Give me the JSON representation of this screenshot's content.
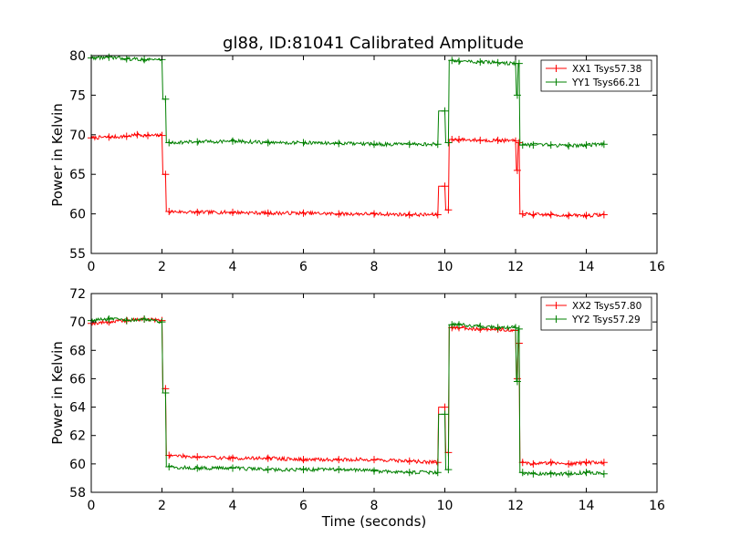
{
  "figure": {
    "title": "gl88, ID:81041 Calibrated Amplitude"
  },
  "chart_data": [
    {
      "type": "line",
      "title": "gl88, ID:81041 Calibrated Amplitude",
      "xlabel": "",
      "ylabel": "Power in Kelvin",
      "xlim": [
        0,
        16
      ],
      "ylim": [
        55,
        80
      ],
      "xticks": [
        "0",
        "2",
        "4",
        "6",
        "8",
        "10",
        "12",
        "14",
        "16"
      ],
      "yticks": [
        "55",
        "60",
        "65",
        "70",
        "75",
        "80"
      ],
      "grid": false,
      "legend_position": "top-right",
      "series": [
        {
          "name": "XX1 Tsys57.38",
          "color": "#ff0000",
          "marker": "plus",
          "x": [
            0,
            0.5,
            1.0,
            1.3,
            1.6,
            2.0,
            2.1,
            2.2,
            3.0,
            4.0,
            5.0,
            6.0,
            7.0,
            8.0,
            9.0,
            9.8,
            10.0,
            10.1,
            10.2,
            10.4,
            11.0,
            11.5,
            12.0,
            12.05,
            12.1,
            12.2,
            12.5,
            13.0,
            13.5,
            14.0,
            14.5
          ],
          "y": [
            69.6,
            69.7,
            69.8,
            70.0,
            69.9,
            69.9,
            65.0,
            60.3,
            60.2,
            60.2,
            60.1,
            60.1,
            60.0,
            60.0,
            59.9,
            59.9,
            63.5,
            60.5,
            69.4,
            69.4,
            69.3,
            69.3,
            69.2,
            65.5,
            69.0,
            60.0,
            59.9,
            59.9,
            59.8,
            59.8,
            59.9
          ]
        },
        {
          "name": "YY1 Tsys66.21",
          "color": "#008000",
          "marker": "plus",
          "x": [
            0,
            0.5,
            1.0,
            1.5,
            2.0,
            2.1,
            2.2,
            3.0,
            4.0,
            5.0,
            6.0,
            7.0,
            8.0,
            9.0,
            9.8,
            10.0,
            10.1,
            10.2,
            10.4,
            11.0,
            11.5,
            12.0,
            12.05,
            12.1,
            12.2,
            12.5,
            13.0,
            13.5,
            14.0,
            14.5
          ],
          "y": [
            79.7,
            79.8,
            79.6,
            79.5,
            79.5,
            74.5,
            69.0,
            69.1,
            69.2,
            69.0,
            69.0,
            68.9,
            68.8,
            68.8,
            68.8,
            73.0,
            69.0,
            79.4,
            79.3,
            79.2,
            79.1,
            79.0,
            75.0,
            79.0,
            68.7,
            68.7,
            68.7,
            68.6,
            68.7,
            68.8
          ]
        }
      ]
    },
    {
      "type": "line",
      "title": "",
      "xlabel": "Time (seconds)",
      "ylabel": "Power in Kelvin",
      "xlim": [
        0,
        16
      ],
      "ylim": [
        58,
        72
      ],
      "xticks": [
        "0",
        "2",
        "4",
        "6",
        "8",
        "10",
        "12",
        "14",
        "16"
      ],
      "yticks": [
        "58",
        "60",
        "62",
        "64",
        "66",
        "68",
        "70",
        "72"
      ],
      "grid": false,
      "legend_position": "top-right",
      "series": [
        {
          "name": "XX2 Tsys57.80",
          "color": "#ff0000",
          "marker": "plus",
          "x": [
            0,
            0.5,
            1.0,
            1.5,
            2.0,
            2.1,
            2.2,
            3.0,
            4.0,
            5.0,
            6.0,
            7.0,
            8.0,
            9.0,
            9.8,
            10.0,
            10.1,
            10.2,
            10.4,
            11.0,
            11.5,
            12.0,
            12.05,
            12.1,
            12.2,
            12.5,
            13.0,
            13.5,
            14.0,
            14.5
          ],
          "y": [
            69.9,
            70.0,
            70.1,
            70.2,
            70.1,
            65.3,
            60.6,
            60.5,
            60.4,
            60.4,
            60.3,
            60.3,
            60.3,
            60.2,
            60.1,
            64.0,
            60.8,
            69.6,
            69.6,
            69.5,
            69.5,
            69.4,
            66.0,
            68.5,
            60.1,
            60.0,
            60.1,
            60.0,
            60.1,
            60.1
          ]
        },
        {
          "name": "YY2 Tsys57.29",
          "color": "#008000",
          "marker": "plus",
          "x": [
            0,
            0.5,
            1.0,
            1.5,
            2.0,
            2.1,
            2.2,
            3.0,
            4.0,
            5.0,
            6.0,
            7.0,
            8.0,
            9.0,
            9.8,
            10.0,
            10.1,
            10.2,
            10.4,
            11.0,
            11.5,
            12.0,
            12.05,
            12.1,
            12.2,
            12.5,
            13.0,
            13.5,
            14.0,
            14.5
          ],
          "y": [
            70.1,
            70.2,
            70.1,
            70.2,
            70.0,
            65.0,
            59.8,
            59.7,
            59.7,
            59.6,
            59.6,
            59.6,
            59.5,
            59.4,
            59.4,
            63.5,
            59.6,
            69.8,
            69.8,
            69.7,
            69.6,
            69.6,
            65.8,
            69.5,
            59.4,
            59.3,
            59.3,
            59.3,
            59.4,
            59.3
          ]
        }
      ]
    }
  ]
}
